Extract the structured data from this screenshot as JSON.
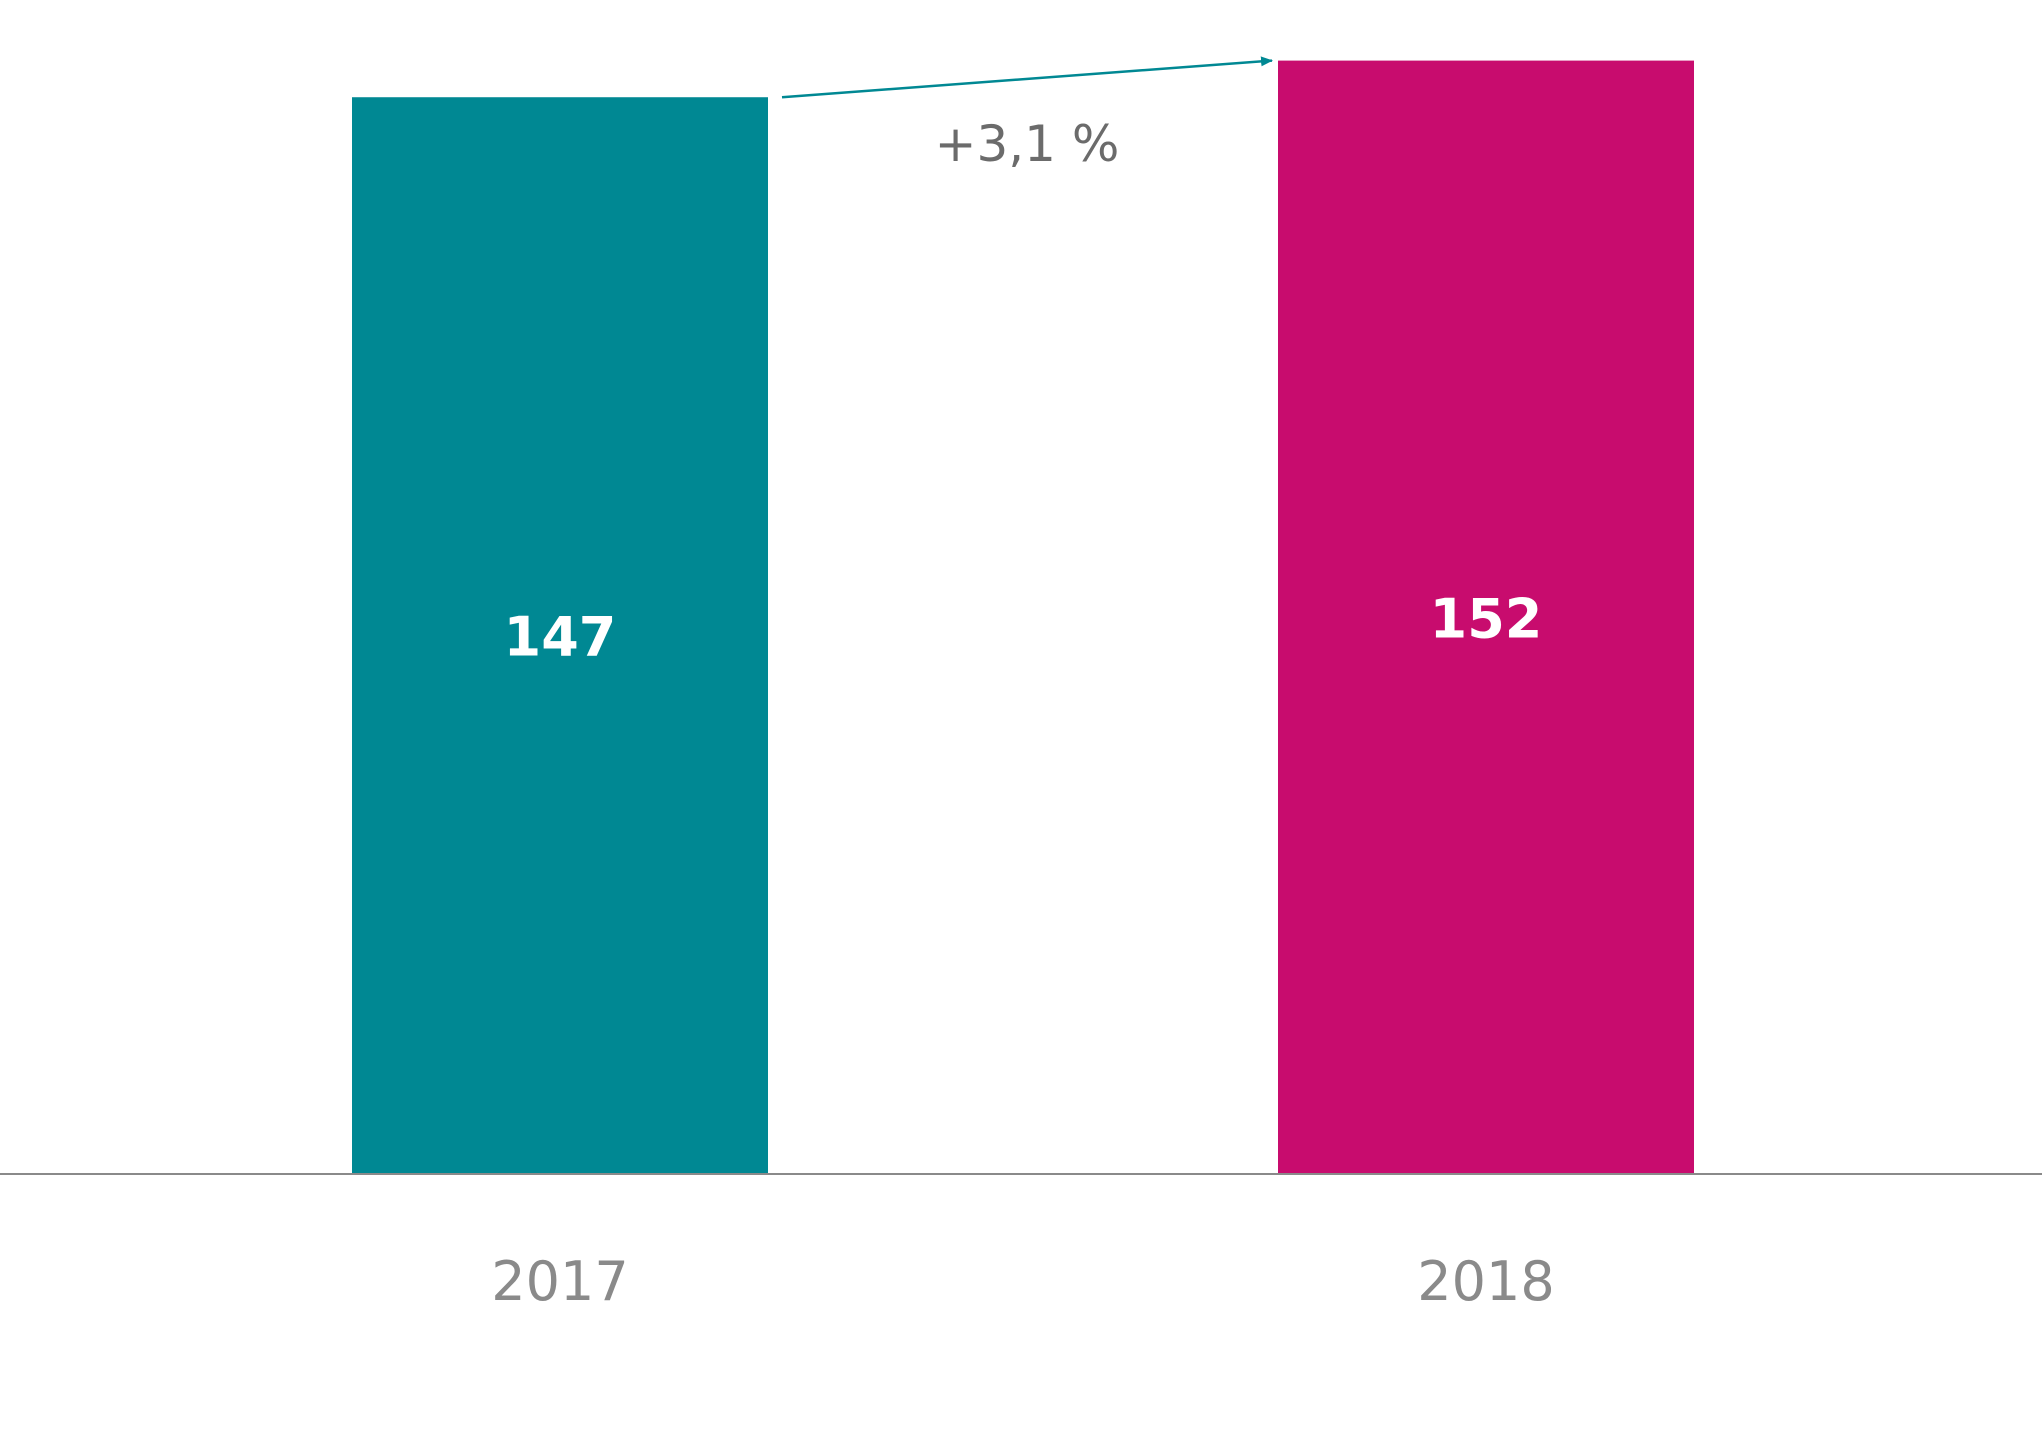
{
  "chart_data": {
    "type": "bar",
    "categories": [
      "2017",
      "2018"
    ],
    "values": [
      147,
      152
    ],
    "value_labels": [
      "147",
      "152"
    ],
    "bar_colors": [
      "#008893",
      "#c80c6e"
    ],
    "ylim": [
      0,
      160
    ],
    "grid": false,
    "legend": "none",
    "annotation": {
      "text": "+3,1 %",
      "arrow_color": "#008893",
      "from_category": "2017",
      "to_category": "2018"
    },
    "title": "",
    "xlabel": "",
    "ylabel": ""
  },
  "colors": {
    "axis": "#8a8a8a",
    "tick_text": "#8a8a8a",
    "annotation_text": "#6b6b6b",
    "bar_value_text": "#ffffff"
  }
}
